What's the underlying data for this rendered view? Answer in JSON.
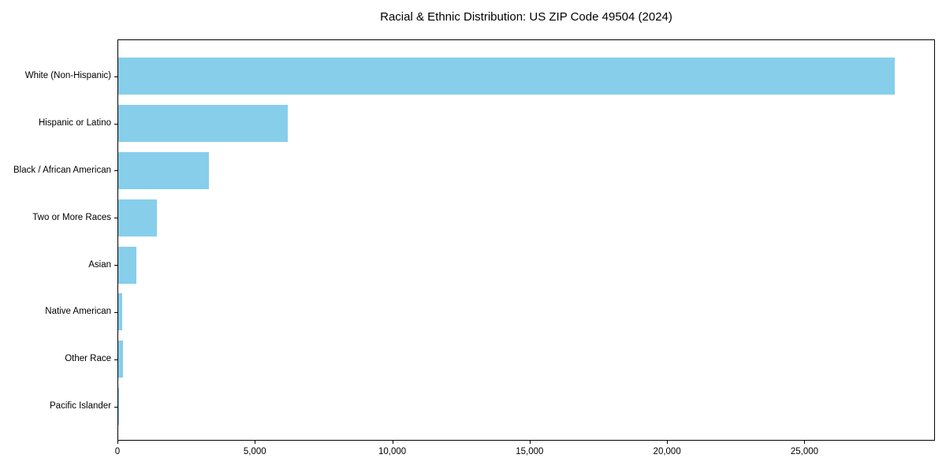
{
  "title": "Racial & Ethnic Distribution: US ZIP Code 49504 (2024)",
  "chart_data": {
    "type": "bar",
    "orientation": "horizontal",
    "title": "Racial & Ethnic Distribution: US ZIP Code 49504 (2024)",
    "xlabel": "",
    "ylabel": "",
    "categories": [
      "White (Non-Hispanic)",
      "Hispanic or Latino",
      "Black / African American",
      "Two or More Races",
      "Asian",
      "Native American",
      "Other Race",
      "Pacific Islander"
    ],
    "values": [
      28300,
      6180,
      3310,
      1400,
      670,
      140,
      160,
      15
    ],
    "xlim": [
      0,
      29750
    ],
    "xticks": [
      0,
      5000,
      10000,
      15000,
      20000,
      25000
    ],
    "xtick_labels": [
      "0",
      "5,000",
      "10,000",
      "15,000",
      "20,000",
      "25,000"
    ],
    "bar_color": "#87CEEB",
    "axis_color": "#000000",
    "background_color": "#ffffff",
    "grid": false,
    "legend": null
  }
}
